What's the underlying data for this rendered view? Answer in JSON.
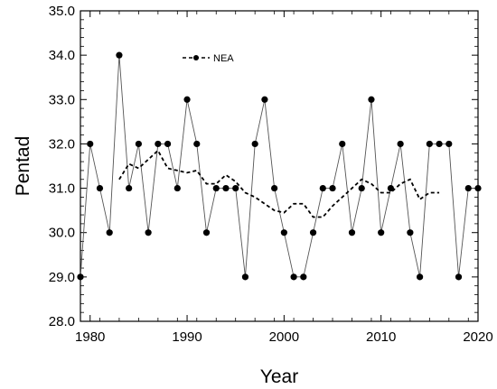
{
  "chart_data": {
    "type": "line",
    "title": "",
    "xlabel": "Year",
    "ylabel": "Pentad",
    "xlim": [
      1979,
      2020
    ],
    "ylim": [
      28.0,
      35.0
    ],
    "xticks": [
      1980,
      1990,
      2000,
      2010,
      2020
    ],
    "yticks": [
      "28.0",
      "29.0",
      "30.0",
      "31.0",
      "32.0",
      "33.0",
      "34.0",
      "35.0"
    ],
    "grid": false,
    "legend_position": "top-center",
    "series": [
      {
        "name": "",
        "style": "solid-with-markers",
        "color": "#555555",
        "x": [
          1979,
          1980,
          1981,
          1982,
          1983,
          1984,
          1985,
          1986,
          1987,
          1988,
          1989,
          1990,
          1991,
          1992,
          1993,
          1994,
          1995,
          1996,
          1997,
          1998,
          1999,
          2000,
          2001,
          2002,
          2003,
          2004,
          2005,
          2006,
          2007,
          2008,
          2009,
          2010,
          2011,
          2012,
          2013,
          2014,
          2015,
          2016,
          2017,
          2018,
          2019,
          2020
        ],
        "values": [
          29,
          32,
          31,
          30,
          34,
          31,
          32,
          30,
          32,
          32,
          31,
          33,
          32,
          30,
          31,
          31,
          31,
          29,
          32,
          33,
          31,
          30,
          29,
          29,
          30,
          31,
          31,
          32,
          30,
          31,
          33,
          30,
          31,
          32,
          30,
          29,
          32,
          32,
          32,
          29,
          31,
          31
        ]
      },
      {
        "name": "NEA",
        "style": "dashed",
        "color": "#000000",
        "x": [
          1983,
          1984,
          1985,
          1986,
          1987,
          1988,
          1989,
          1990,
          1991,
          1992,
          1993,
          1994,
          1995,
          1996,
          1997,
          1998,
          1999,
          2000,
          2001,
          2002,
          2003,
          2004,
          2005,
          2006,
          2007,
          2008,
          2009,
          2010,
          2011,
          2012,
          2013,
          2014,
          2015,
          2016
        ],
        "values": [
          31.2,
          31.55,
          31.45,
          31.65,
          31.85,
          31.45,
          31.4,
          31.35,
          31.4,
          31.1,
          31.1,
          31.3,
          31.15,
          30.9,
          30.8,
          30.65,
          30.5,
          30.45,
          30.65,
          30.65,
          30.35,
          30.35,
          30.6,
          30.8,
          31.0,
          31.2,
          31.1,
          30.9,
          30.9,
          31.1,
          31.2,
          30.75,
          30.9,
          30.9
        ]
      }
    ]
  }
}
